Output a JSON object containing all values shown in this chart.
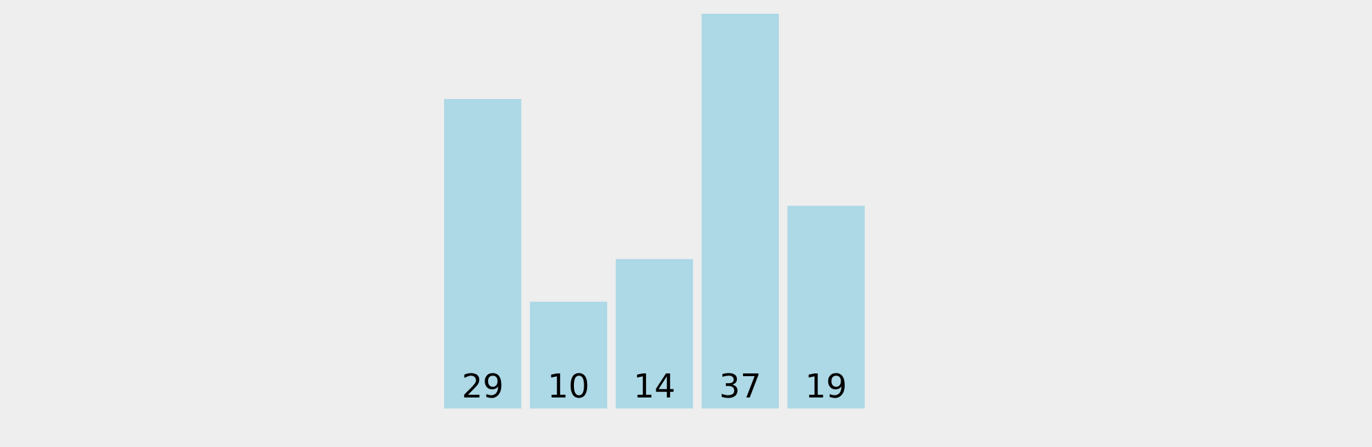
{
  "chart_data": {
    "type": "bar",
    "categories": [
      null,
      null,
      null,
      null,
      null
    ],
    "values": [
      29,
      10,
      14,
      37,
      19
    ],
    "color": "#add8e6",
    "data_labels": true,
    "tick_labels": false
  }
}
